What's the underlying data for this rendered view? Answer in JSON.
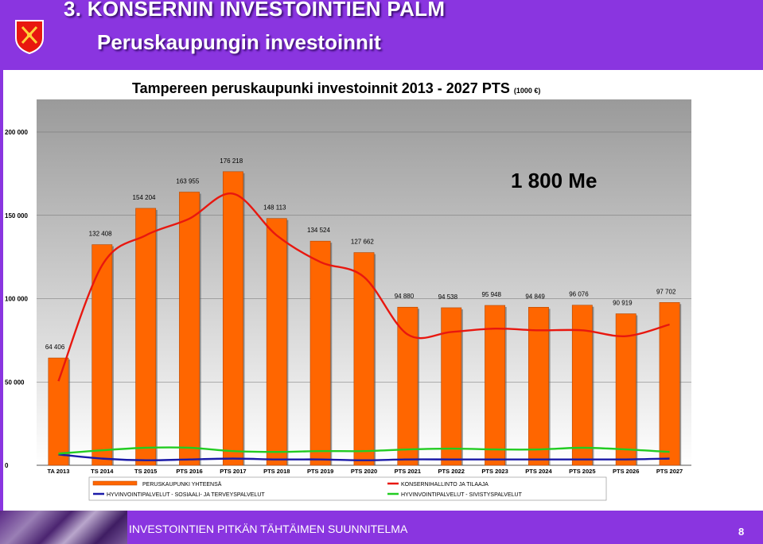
{
  "header": {
    "title": "3. KONSERNIN INVESTOINTIEN PALM",
    "subtitle": "Peruskaupungin investoinnit"
  },
  "footer": {
    "text": "INVESTOINTIEN PITKÄN TÄHTÄIMEN SUUNNITELMA",
    "page": "8"
  },
  "colors": {
    "purple": "#8a35e0",
    "bar": "#ff6600",
    "red_line": "#e8170f",
    "blue_line": "#1a1aa8",
    "green_line": "#22cc22",
    "plot_bg": "#a6a6a6"
  },
  "chart_data": {
    "type": "bar",
    "title": "Tampereen peruskaupunki investoinnit 2013 - 2027 PTS",
    "title_unit": "(1000 €)",
    "annotation": "1 800 Me",
    "ylim": [
      0,
      200000
    ],
    "yticks": [
      0,
      50000,
      100000,
      150000,
      200000
    ],
    "ytick_labels": [
      "0",
      "50 000",
      "100 000",
      "150 000",
      "200 000"
    ],
    "grid": true,
    "legend_placement": "bottom",
    "categories": [
      "TA 2013",
      "TS 2014",
      "TS 2015",
      "PTS 2016",
      "PTS 2017",
      "PTS 2018",
      "PTS 2019",
      "PTS 2020",
      "PTS 2021",
      "PTS 2022",
      "PTS 2023",
      "PTS 2024",
      "PTS 2025",
      "PTS 2026",
      "PTS 2027"
    ],
    "series": [
      {
        "name": "PERUSKAUPUNKI YHTEENSÄ",
        "kind": "bar",
        "values": [
          64406,
          132408,
          154204,
          163955,
          176218,
          148113,
          134524,
          127662,
          94880,
          94538,
          95948,
          94849,
          96076,
          90919,
          97702
        ],
        "labels": [
          "64 406",
          "132 408",
          "154 204",
          "163 955",
          "176 218",
          "148 113",
          "134 524",
          "127 662",
          "94 880",
          "94 538",
          "95 948",
          "94 849",
          "96 076",
          "90 919",
          "97 702"
        ]
      },
      {
        "name": "KONSERNIHALLINTO JA TILAAJA",
        "kind": "line",
        "values": [
          50500,
          120000,
          138000,
          148000,
          163000,
          138000,
          122000,
          113000,
          78500,
          80000,
          82000,
          81000,
          81000,
          77500,
          84500
        ]
      },
      {
        "name": "HYVINVOINTIPALVELUT - SOSIAALI- JA TERVEYSPALVELUT",
        "kind": "line",
        "values": [
          6500,
          4000,
          3000,
          3500,
          4000,
          3500,
          3500,
          3000,
          3500,
          3500,
          3500,
          3500,
          3500,
          3500,
          4000
        ]
      },
      {
        "name": "HYVINVOINTIPALVELUT - SIVISTYSPALVELUT",
        "kind": "line",
        "values": [
          7000,
          9000,
          10500,
          10500,
          8500,
          8000,
          8500,
          8500,
          9500,
          10000,
          9500,
          9500,
          10500,
          9500,
          8000
        ]
      }
    ]
  }
}
